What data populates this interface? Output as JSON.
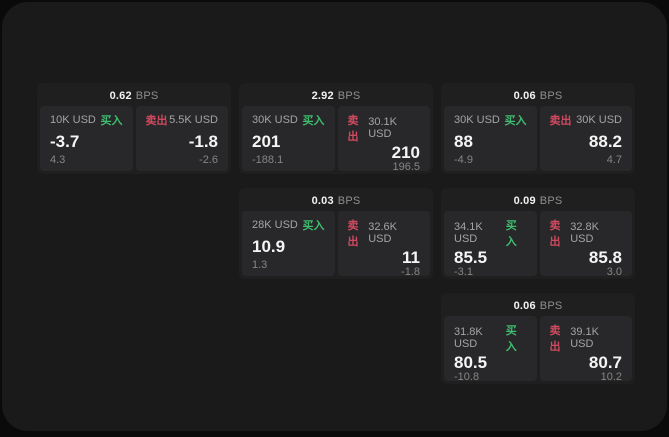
{
  "colors": {
    "buy": "#3ebd6f",
    "sell": "#cf4a5f",
    "surface": "#1a1a1b",
    "card": "#1f1f20",
    "panel": "#28282a"
  },
  "labels": {
    "bps_unit": "BPS",
    "buy": "买入",
    "sell": "卖出"
  },
  "cards": [
    {
      "bps": "0.62",
      "buy": {
        "amount": "10K USD",
        "value": "-3.7",
        "sub": "4.3"
      },
      "sell": {
        "amount": "5.5K USD",
        "value": "-1.8",
        "sub": "-2.6"
      }
    },
    {
      "bps": "2.92",
      "buy": {
        "amount": "30K USD",
        "value": "201",
        "sub": "-188.1"
      },
      "sell": {
        "amount": "30.1K USD",
        "value": "210",
        "sub": "196.5"
      }
    },
    {
      "bps": "0.06",
      "buy": {
        "amount": "30K USD",
        "value": "88",
        "sub": "-4.9"
      },
      "sell": {
        "amount": "30K USD",
        "value": "88.2",
        "sub": "4.7"
      }
    },
    {
      "bps": "0.03",
      "buy": {
        "amount": "28K USD",
        "value": "10.9",
        "sub": "1.3"
      },
      "sell": {
        "amount": "32.6K USD",
        "value": "11",
        "sub": "-1.8"
      }
    },
    {
      "bps": "0.09",
      "buy": {
        "amount": "34.1K USD",
        "value": "85.5",
        "sub": "-3.1"
      },
      "sell": {
        "amount": "32.8K USD",
        "value": "85.8",
        "sub": "3.0"
      }
    },
    {
      "bps": "0.06",
      "buy": {
        "amount": "31.8K USD",
        "value": "80.5",
        "sub": "-10.8"
      },
      "sell": {
        "amount": "39.1K USD",
        "value": "80.7",
        "sub": "10.2"
      }
    }
  ]
}
